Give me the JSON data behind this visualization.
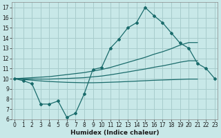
{
  "title": "",
  "xlabel": "Humidex (Indice chaleur)",
  "bg_color": "#c8e8e8",
  "grid_color": "#a8cccc",
  "line_color": "#1a6b6b",
  "x_values": [
    0,
    1,
    2,
    3,
    4,
    5,
    6,
    7,
    8,
    9,
    10,
    11,
    12,
    13,
    14,
    15,
    16,
    17,
    18,
    19,
    20,
    21,
    22,
    23
  ],
  "line_main": [
    10.0,
    9.8,
    9.5,
    7.5,
    7.5,
    7.8,
    6.2,
    6.6,
    8.5,
    10.9,
    11.1,
    13.0,
    13.9,
    15.0,
    15.5,
    17.0,
    16.2,
    15.5,
    14.5,
    13.5,
    13.0,
    11.5,
    11.0,
    10.0
  ],
  "line_upper": [
    10.0,
    10.05,
    10.1,
    10.15,
    10.2,
    10.3,
    10.4,
    10.5,
    10.6,
    10.75,
    10.9,
    11.1,
    11.35,
    11.6,
    11.85,
    12.1,
    12.4,
    12.65,
    12.95,
    13.3,
    13.55,
    13.55,
    null,
    null
  ],
  "line_lower": [
    10.0,
    9.92,
    9.85,
    9.78,
    9.72,
    9.68,
    9.64,
    9.62,
    9.6,
    9.6,
    9.62,
    9.65,
    9.68,
    9.72,
    9.76,
    9.8,
    9.84,
    9.87,
    9.9,
    9.93,
    9.96,
    9.96,
    null,
    null
  ],
  "line_mid": [
    10.0,
    9.98,
    9.97,
    9.96,
    9.96,
    9.99,
    10.02,
    10.06,
    10.1,
    10.18,
    10.26,
    10.38,
    10.52,
    10.66,
    10.81,
    10.95,
    11.12,
    11.26,
    11.43,
    11.62,
    11.76,
    11.76,
    null,
    null
  ],
  "ylim": [
    6,
    17.5
  ],
  "xlim": [
    -0.3,
    23.3
  ],
  "yticks": [
    6,
    7,
    8,
    9,
    10,
    11,
    12,
    13,
    14,
    15,
    16,
    17
  ],
  "xticks": [
    0,
    1,
    2,
    3,
    4,
    5,
    6,
    7,
    8,
    9,
    10,
    11,
    12,
    13,
    14,
    15,
    16,
    17,
    18,
    19,
    20,
    21,
    22,
    23
  ],
  "tick_fontsize": 5.5,
  "xlabel_fontsize": 6.5
}
